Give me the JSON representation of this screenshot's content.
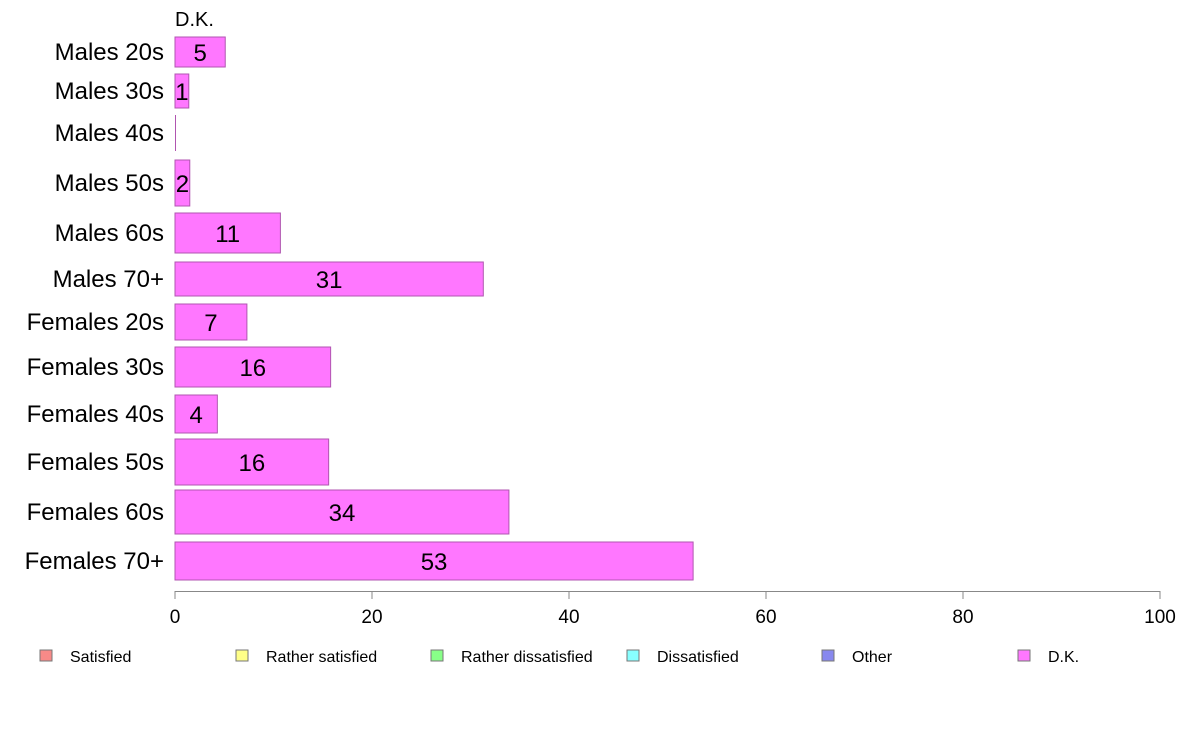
{
  "chart_data": {
    "type": "bar",
    "orientation": "horizontal",
    "title": "D.K.",
    "categories": [
      "Males 20s",
      "Males 30s",
      "Males 40s",
      "Males 50s",
      "Males 60s",
      "Males 70+",
      "Females 20s",
      "Females 30s",
      "Females 40s",
      "Females 50s",
      "Females 60s",
      "Females 70+"
    ],
    "values": [
      5.1,
      1.4,
      0,
      1.5,
      10.7,
      31.3,
      7.3,
      15.8,
      4.3,
      15.6,
      33.9,
      52.6
    ],
    "value_labels": [
      "5",
      "1",
      "",
      "2",
      "11",
      "31",
      "7",
      "16",
      "4",
      "16",
      "34",
      "53"
    ],
    "xlim": [
      0,
      100
    ],
    "xticks": [
      "0",
      "20",
      "40",
      "60",
      "80",
      "100"
    ],
    "xtick_values": [
      0,
      20,
      40,
      60,
      80,
      100
    ],
    "grid": false,
    "bar_color": "#ff77ff",
    "legend_position": "bottom",
    "legend": [
      {
        "label": "Satisfied",
        "color": "#f88a88"
      },
      {
        "label": "Rather satisfied",
        "color": "#ffff88"
      },
      {
        "label": "Rather dissatisfied",
        "color": "#88ff88"
      },
      {
        "label": "Dissatisfied",
        "color": "#88ffff"
      },
      {
        "label": "Other",
        "color": "#8888ee"
      },
      {
        "label": "D.K.",
        "color": "#ff77ff"
      }
    ]
  }
}
